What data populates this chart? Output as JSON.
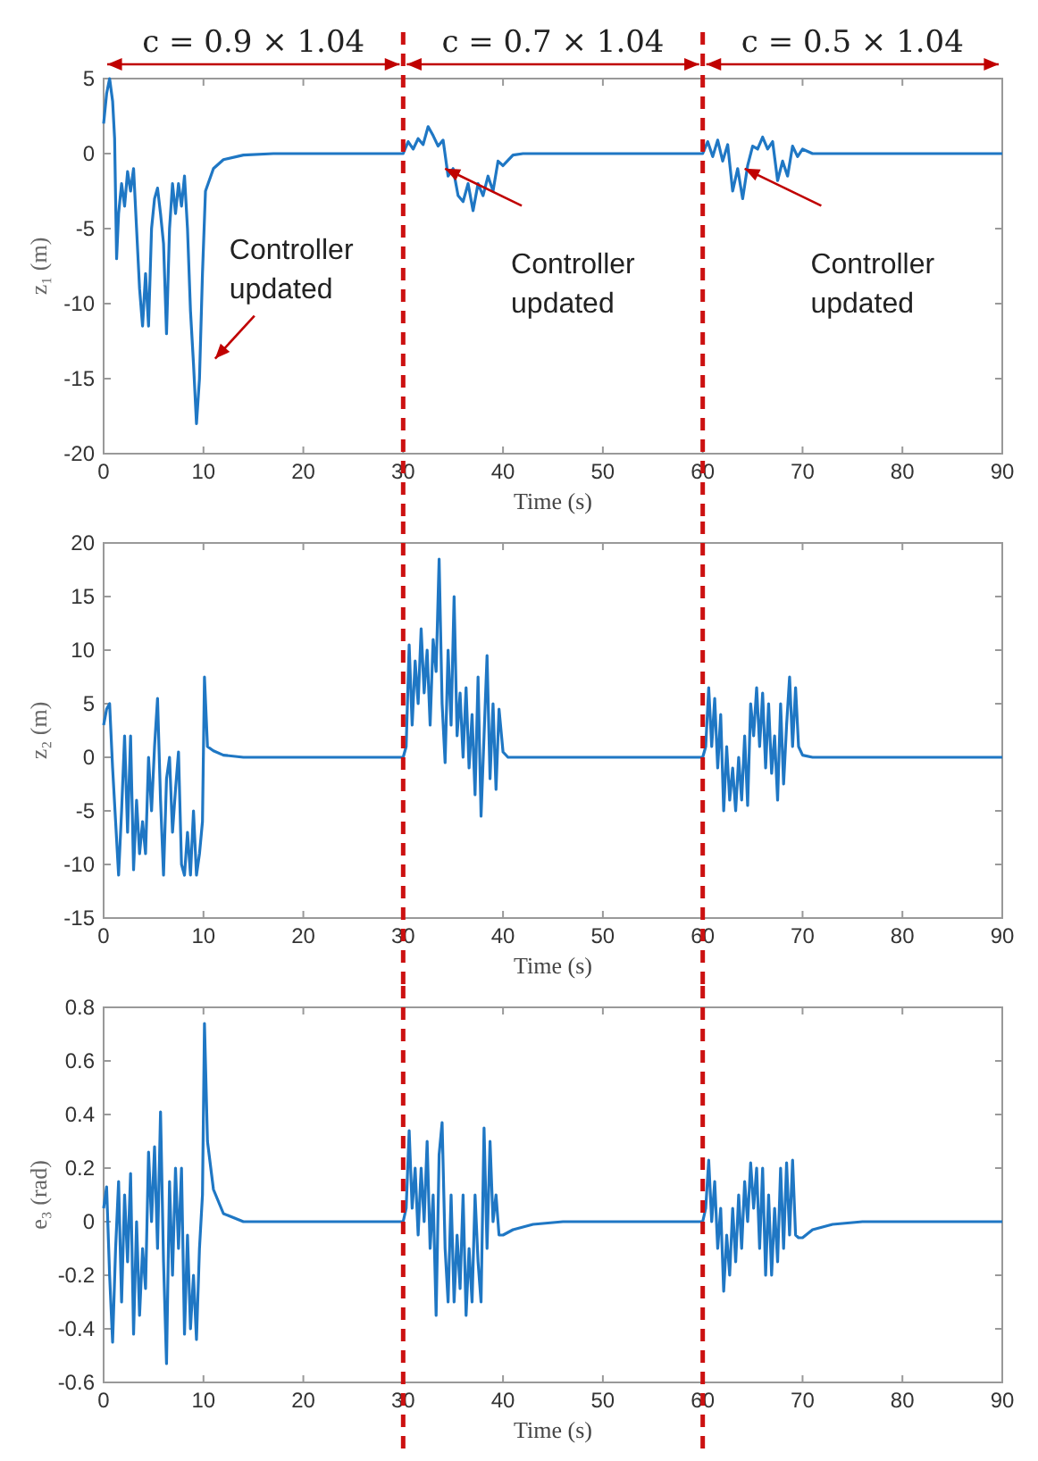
{
  "chart_data": [
    {
      "type": "line",
      "xlabel": "Time (s)",
      "ylabel": "z₁ (m)",
      "xlim": [
        0,
        90
      ],
      "ylim": [
        -20,
        5
      ],
      "xticks": [
        0,
        10,
        20,
        30,
        40,
        50,
        60,
        70,
        80,
        90
      ],
      "yticks": [
        -20,
        -15,
        -10,
        -5,
        0,
        5
      ],
      "line_style": "solid",
      "series": [
        {
          "color": "#1f77c4",
          "x": [
            0,
            0.3,
            0.6,
            0.9,
            1.1,
            1.3,
            1.5,
            1.8,
            2.1,
            2.4,
            2.7,
            3,
            3.3,
            3.6,
            3.9,
            4.2,
            4.5,
            4.8,
            5.1,
            5.4,
            5.7,
            6,
            6.3,
            6.6,
            6.9,
            7.2,
            7.5,
            7.8,
            8.1,
            8.4,
            8.7,
            9,
            9.3,
            9.6,
            9.9,
            10.2,
            11,
            12,
            14,
            17,
            30,
            30.5,
            31,
            31.5,
            32,
            32.5,
            33,
            33.5,
            34,
            34.5,
            35,
            35.5,
            36,
            36.5,
            37,
            37.5,
            38,
            38.5,
            39,
            39.5,
            40,
            41,
            42,
            60,
            60.5,
            61,
            61.5,
            62,
            62.5,
            63,
            63.5,
            64,
            64.5,
            65,
            65.5,
            66,
            66.5,
            67,
            67.5,
            68,
            68.5,
            69,
            69.5,
            70,
            71,
            90
          ],
          "values": [
            2,
            4,
            5,
            3.5,
            1,
            -7,
            -4,
            -2,
            -3.5,
            -1.2,
            -2.5,
            -1,
            -5,
            -9,
            -11.5,
            -8,
            -11.5,
            -5,
            -3,
            -2.3,
            -4,
            -6,
            -12,
            -5,
            -2,
            -4,
            -2,
            -3.5,
            -1.5,
            -5,
            -10.5,
            -14,
            -18,
            -15,
            -8,
            -2.5,
            -1,
            -0.4,
            -0.1,
            0,
            0,
            0.8,
            0.3,
            1,
            0.6,
            1.8,
            1.2,
            0.5,
            0.9,
            -1.5,
            -1,
            -2.8,
            -3.2,
            -2,
            -3.8,
            -2,
            -2.8,
            -1.5,
            -2.5,
            -0.5,
            -0.8,
            -0.1,
            0,
            0,
            0.8,
            -0.2,
            0.9,
            -0.5,
            0.6,
            -2.5,
            -1,
            -3,
            -0.8,
            0.5,
            0.3,
            1.1,
            0.3,
            0.8,
            -1.8,
            -0.5,
            -1.5,
            0.5,
            -0.2,
            0.3,
            0,
            0
          ]
        }
      ],
      "ref_lines": [
        {
          "axis": "x",
          "value": 30,
          "color": "#cc1111",
          "line_style": "dashed"
        },
        {
          "axis": "x",
          "value": 60,
          "color": "#cc1111",
          "line_style": "dashed"
        }
      ],
      "annotations": [
        "c = 0.9 × 1.04",
        "c = 0.7 × 1.04",
        "c = 0.5 × 1.04",
        "Controller updated",
        "Controller updated",
        "Controller updated"
      ]
    },
    {
      "type": "line",
      "xlabel": "Time (s)",
      "ylabel": "z₂ (m)",
      "xlim": [
        0,
        90
      ],
      "ylim": [
        -15,
        20
      ],
      "xticks": [
        0,
        10,
        20,
        30,
        40,
        50,
        60,
        70,
        80,
        90
      ],
      "yticks": [
        -15,
        -10,
        -5,
        0,
        5,
        10,
        15,
        20
      ],
      "line_style": "solid",
      "series": [
        {
          "color": "#1f77c4",
          "x": [
            0,
            0.3,
            0.6,
            0.9,
            1.2,
            1.5,
            1.8,
            2.1,
            2.4,
            2.7,
            3,
            3.3,
            3.6,
            3.9,
            4.2,
            4.5,
            4.8,
            5.1,
            5.4,
            5.7,
            6,
            6.3,
            6.6,
            6.9,
            7.2,
            7.5,
            7.8,
            8.1,
            8.4,
            8.7,
            9,
            9.3,
            9.6,
            9.9,
            10.1,
            10.4,
            11,
            12,
            14,
            30,
            30.3,
            30.6,
            30.9,
            31.2,
            31.5,
            31.8,
            32.1,
            32.4,
            32.7,
            33,
            33.3,
            33.6,
            33.9,
            34.2,
            34.5,
            34.8,
            35.1,
            35.4,
            35.7,
            36,
            36.3,
            36.6,
            36.9,
            37.2,
            37.5,
            37.8,
            38.1,
            38.4,
            38.7,
            39,
            39.3,
            39.6,
            40,
            40.5,
            60,
            60.3,
            60.6,
            60.9,
            61.2,
            61.5,
            61.8,
            62.1,
            62.4,
            62.7,
            63,
            63.3,
            63.6,
            63.9,
            64.2,
            64.5,
            64.8,
            65.1,
            65.4,
            65.7,
            66,
            66.3,
            66.6,
            66.9,
            67.2,
            67.5,
            67.8,
            68.1,
            68.4,
            68.7,
            69,
            69.3,
            69.6,
            70,
            71,
            90
          ],
          "values": [
            3,
            4.5,
            5,
            -1,
            -6,
            -11,
            -5,
            2,
            -7,
            2,
            -10.5,
            -4,
            -9,
            -6,
            -9,
            0,
            -5,
            1,
            5.5,
            -4,
            -11,
            -2,
            0,
            -7,
            -3,
            0.5,
            -10,
            -11,
            -7,
            -11,
            -5,
            -11,
            -9,
            -6,
            7.5,
            1,
            0.6,
            0.2,
            0,
            0,
            1,
            10.5,
            3,
            9,
            5,
            12,
            6,
            10,
            3,
            11,
            8,
            18.5,
            5,
            -0.5,
            10,
            3,
            15,
            2,
            6,
            0,
            6.5,
            -1,
            4,
            -3.5,
            7.5,
            -5.5,
            2,
            9.5,
            -2,
            5,
            -3,
            4.5,
            0.5,
            0,
            0,
            1,
            6.5,
            1,
            5.5,
            -1,
            4,
            -5,
            1,
            -4,
            -1,
            -5,
            0,
            -4,
            2,
            -4.5,
            5,
            2,
            6.5,
            1,
            6,
            -1,
            5,
            -1.5,
            2,
            -4,
            5,
            -2.5,
            3,
            7.5,
            1,
            6.5,
            1,
            0.2,
            0,
            0
          ]
        }
      ],
      "ref_lines": [
        {
          "axis": "x",
          "value": 30,
          "color": "#cc1111",
          "line_style": "dashed"
        },
        {
          "axis": "x",
          "value": 60,
          "color": "#cc1111",
          "line_style": "dashed"
        }
      ]
    },
    {
      "type": "line",
      "xlabel": "Time (s)",
      "ylabel": "e₃ (rad)",
      "xlim": [
        0,
        90
      ],
      "ylim": [
        -0.6,
        0.8
      ],
      "xticks": [
        0,
        10,
        20,
        30,
        40,
        50,
        60,
        70,
        80,
        90
      ],
      "yticks": [
        -0.6,
        -0.4,
        -0.2,
        0,
        0.2,
        0.4,
        0.6,
        0.8
      ],
      "line_style": "solid",
      "series": [
        {
          "color": "#1f77c4",
          "x": [
            0,
            0.3,
            0.6,
            0.9,
            1.2,
            1.5,
            1.8,
            2.1,
            2.4,
            2.7,
            3,
            3.3,
            3.6,
            3.9,
            4.2,
            4.5,
            4.8,
            5.1,
            5.4,
            5.7,
            6,
            6.3,
            6.6,
            6.9,
            7.2,
            7.5,
            7.8,
            8.1,
            8.4,
            8.7,
            9,
            9.3,
            9.6,
            9.9,
            10.1,
            10.4,
            11,
            12,
            14,
            30,
            30.3,
            30.6,
            30.9,
            31.2,
            31.5,
            31.8,
            32.1,
            32.4,
            32.7,
            33,
            33.3,
            33.6,
            33.9,
            34.2,
            34.5,
            34.8,
            35.1,
            35.4,
            35.7,
            36,
            36.3,
            36.6,
            36.9,
            37.2,
            37.5,
            37.8,
            38.1,
            38.4,
            38.7,
            39,
            39.3,
            39.6,
            40,
            41,
            43,
            46,
            60,
            60.3,
            60.6,
            60.9,
            61.2,
            61.5,
            61.8,
            62.1,
            62.4,
            62.7,
            63,
            63.3,
            63.6,
            63.9,
            64.2,
            64.5,
            64.8,
            65.1,
            65.4,
            65.7,
            66,
            66.3,
            66.6,
            66.9,
            67.2,
            67.5,
            67.8,
            68.1,
            68.4,
            68.7,
            69,
            69.3,
            69.6,
            70,
            71,
            73,
            76,
            90
          ],
          "values": [
            0.05,
            0.13,
            -0.2,
            -0.45,
            -0.1,
            0.15,
            -0.3,
            0.1,
            -0.15,
            0.18,
            -0.42,
            0,
            -0.35,
            -0.1,
            -0.25,
            0.26,
            0,
            0.28,
            -0.1,
            0.41,
            -0.15,
            -0.53,
            0.15,
            -0.2,
            0.2,
            -0.1,
            0.2,
            -0.42,
            -0.05,
            -0.4,
            -0.2,
            -0.44,
            -0.1,
            0.1,
            0.74,
            0.3,
            0.12,
            0.03,
            0,
            0,
            0.05,
            0.34,
            0.05,
            0.2,
            -0.05,
            0.2,
            0,
            0.3,
            -0.1,
            0.1,
            -0.35,
            0.25,
            0.37,
            -0.1,
            -0.3,
            0.1,
            -0.3,
            -0.05,
            -0.25,
            0.1,
            -0.35,
            -0.1,
            -0.3,
            0.1,
            -0.15,
            -0.3,
            0.35,
            -0.1,
            0.3,
            0,
            0.1,
            -0.05,
            -0.05,
            -0.03,
            -0.01,
            0,
            0,
            0.05,
            0.23,
            0,
            0.15,
            -0.1,
            0.05,
            -0.26,
            -0.05,
            -0.2,
            0.05,
            -0.15,
            0.1,
            -0.1,
            0.15,
            0,
            0.22,
            0.05,
            0.2,
            -0.1,
            0.2,
            -0.2,
            0.1,
            -0.2,
            0.05,
            -0.15,
            0.2,
            -0.1,
            0.22,
            -0.05,
            0.23,
            -0.05,
            -0.06,
            -0.06,
            -0.03,
            -0.01,
            0,
            0
          ]
        }
      ],
      "ref_lines": [
        {
          "axis": "x",
          "value": 30,
          "color": "#cc1111",
          "line_style": "dashed"
        },
        {
          "axis": "x",
          "value": 60,
          "color": "#cc1111",
          "line_style": "dashed"
        }
      ]
    }
  ]
}
